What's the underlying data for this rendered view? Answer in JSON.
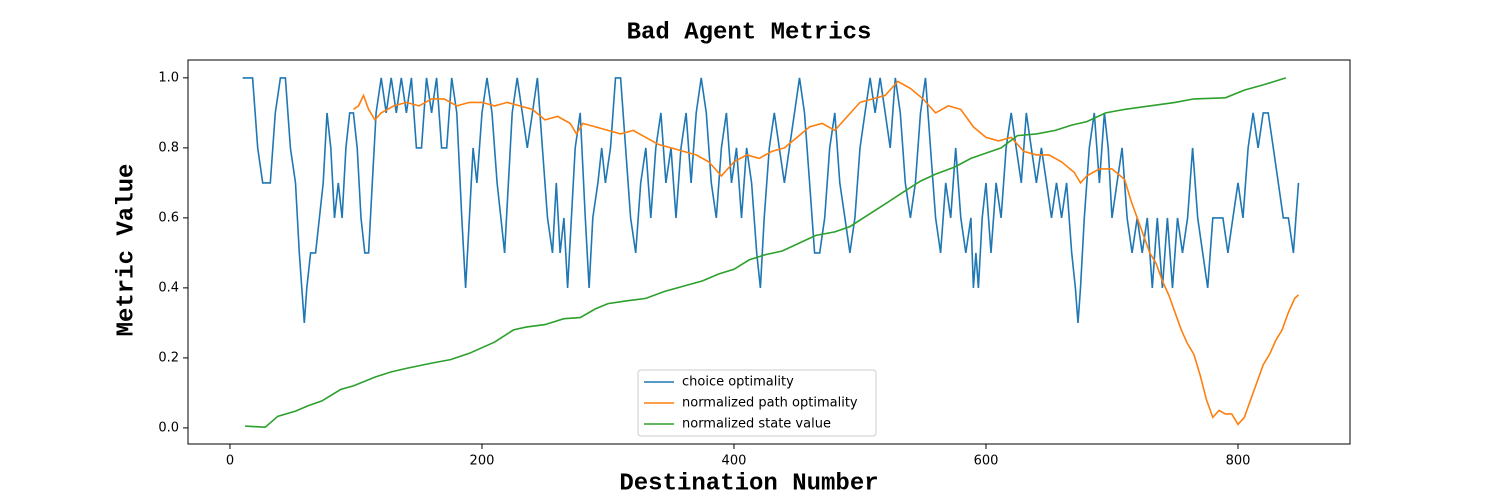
{
  "chart_data": {
    "type": "line",
    "title": "Bad Agent Metrics",
    "x_label": "Destination Number",
    "y_label": "Metric Value",
    "xlim": [
      -33.3,
      888.9
    ],
    "ylim": [
      -0.046,
      1.051
    ],
    "xticks": [
      0,
      200,
      400,
      600,
      800
    ],
    "yticks": [
      {
        "value": 0,
        "label": "0.0"
      },
      {
        "value": 0.2,
        "label": "0.2"
      },
      {
        "value": 0.4,
        "label": "0.4"
      },
      {
        "value": 0.6,
        "label": "0.6"
      },
      {
        "value": 0.8,
        "label": "0.8"
      },
      {
        "value": 1,
        "label": "1.0"
      }
    ],
    "legend": "lower center",
    "series": [
      {
        "name": "choice optimality",
        "color": "#1f77b4",
        "x": [
          10,
          18,
          22,
          26,
          32,
          36,
          40,
          44,
          48,
          52,
          55,
          57,
          59,
          61,
          64,
          68,
          71,
          74,
          77,
          80,
          83,
          86,
          89,
          92,
          95,
          98,
          101,
          104,
          107,
          110,
          113,
          116,
          120,
          124,
          128,
          132,
          136,
          140,
          144,
          148,
          152,
          156,
          160,
          164,
          168,
          172,
          176,
          180,
          184,
          187,
          190,
          193,
          196,
          200,
          204,
          208,
          212,
          215,
          218,
          221,
          224,
          228,
          232,
          236,
          240,
          244,
          248,
          252,
          256,
          259,
          262,
          265,
          268,
          271,
          274,
          278,
          282,
          285,
          288,
          292,
          295,
          298,
          302,
          306,
          310,
          314,
          318,
          322,
          326,
          330,
          334,
          338,
          342,
          346,
          350,
          354,
          358,
          362,
          366,
          370,
          374,
          378,
          382,
          386,
          390,
          394,
          398,
          402,
          406,
          410,
          414,
          418,
          421,
          424,
          428,
          432,
          436,
          440,
          444,
          448,
          452,
          456,
          460,
          464,
          468,
          472,
          476,
          480,
          484,
          488,
          492,
          496,
          500,
          504,
          508,
          512,
          516,
          520,
          524,
          528,
          532,
          536,
          540,
          544,
          548,
          552,
          556,
          560,
          564,
          568,
          572,
          576,
          580,
          584,
          588,
          590,
          592,
          594,
          597,
          600,
          604,
          608,
          612,
          616,
          620,
          624,
          628,
          632,
          636,
          640,
          644,
          648,
          652,
          656,
          660,
          664,
          668,
          671,
          673,
          675,
          678,
          682,
          686,
          690,
          694,
          697,
          700,
          704,
          708,
          712,
          716,
          720,
          724,
          728,
          732,
          736,
          740,
          744,
          748,
          752,
          756,
          760,
          764,
          768,
          772,
          776,
          780,
          784,
          788,
          792,
          796,
          800,
          804,
          808,
          812,
          816,
          820,
          824,
          828,
          832,
          836,
          840,
          844,
          846,
          848
        ],
        "values": [
          1.0,
          1.0,
          0.8,
          0.7,
          0.7,
          0.9,
          1.0,
          1.0,
          0.8,
          0.7,
          0.5,
          0.4,
          0.3,
          0.4,
          0.5,
          0.5,
          0.6,
          0.7,
          0.9,
          0.8,
          0.6,
          0.7,
          0.6,
          0.8,
          0.9,
          0.9,
          0.8,
          0.6,
          0.5,
          0.5,
          0.7,
          0.9,
          1.0,
          0.9,
          1.0,
          0.9,
          1.0,
          0.9,
          1.0,
          0.8,
          0.8,
          1.0,
          0.9,
          1.0,
          0.8,
          0.8,
          1.0,
          0.9,
          0.6,
          0.4,
          0.6,
          0.8,
          0.7,
          0.9,
          1.0,
          0.9,
          0.7,
          0.6,
          0.5,
          0.7,
          0.9,
          1.0,
          0.9,
          0.8,
          0.9,
          1.0,
          0.8,
          0.6,
          0.5,
          0.7,
          0.5,
          0.6,
          0.4,
          0.6,
          0.8,
          0.9,
          0.6,
          0.4,
          0.6,
          0.7,
          0.8,
          0.7,
          0.8,
          1.0,
          1.0,
          0.8,
          0.6,
          0.5,
          0.7,
          0.8,
          0.6,
          0.8,
          0.9,
          0.7,
          0.8,
          0.6,
          0.8,
          0.9,
          0.7,
          0.9,
          1.0,
          0.9,
          0.7,
          0.6,
          0.8,
          0.9,
          0.7,
          0.8,
          0.6,
          0.8,
          0.7,
          0.5,
          0.4,
          0.6,
          0.8,
          0.9,
          0.8,
          0.7,
          0.8,
          0.9,
          1.0,
          0.9,
          0.7,
          0.5,
          0.5,
          0.6,
          0.8,
          0.9,
          0.7,
          0.6,
          0.5,
          0.6,
          0.8,
          0.9,
          1.0,
          0.9,
          1.0,
          0.9,
          0.8,
          1.0,
          0.9,
          0.7,
          0.6,
          0.7,
          0.9,
          1.0,
          0.8,
          0.6,
          0.5,
          0.7,
          0.6,
          0.8,
          0.6,
          0.5,
          0.6,
          0.4,
          0.5,
          0.4,
          0.6,
          0.7,
          0.5,
          0.7,
          0.6,
          0.8,
          0.9,
          0.8,
          0.7,
          0.9,
          0.8,
          0.7,
          0.8,
          0.7,
          0.6,
          0.7,
          0.6,
          0.7,
          0.5,
          0.4,
          0.3,
          0.4,
          0.6,
          0.8,
          0.9,
          0.7,
          0.9,
          0.8,
          0.6,
          0.7,
          0.8,
          0.6,
          0.5,
          0.6,
          0.5,
          0.6,
          0.4,
          0.6,
          0.4,
          0.6,
          0.4,
          0.6,
          0.5,
          0.6,
          0.8,
          0.6,
          0.5,
          0.4,
          0.6,
          0.6,
          0.6,
          0.5,
          0.6,
          0.7,
          0.6,
          0.8,
          0.9,
          0.8,
          0.9,
          0.9,
          0.8,
          0.7,
          0.6,
          0.6,
          0.5,
          0.6,
          0.7
        ]
      },
      {
        "name": "normalized path optimality",
        "color": "#ff7f0e",
        "x": [
          98,
          102,
          106,
          110,
          115,
          120,
          130,
          140,
          150,
          160,
          170,
          180,
          190,
          200,
          210,
          220,
          230,
          240,
          250,
          260,
          270,
          275,
          280,
          290,
          300,
          310,
          320,
          330,
          340,
          350,
          360,
          370,
          380,
          390,
          400,
          410,
          420,
          430,
          440,
          450,
          460,
          470,
          480,
          490,
          500,
          510,
          520,
          530,
          540,
          550,
          560,
          570,
          580,
          590,
          600,
          610,
          620,
          630,
          640,
          650,
          660,
          670,
          675,
          680,
          690,
          700,
          710,
          715,
          720,
          725,
          730,
          735,
          740,
          745,
          750,
          755,
          760,
          765,
          770,
          775,
          780,
          785,
          790,
          795,
          800,
          805,
          810,
          815,
          820,
          825,
          830,
          835,
          840,
          845,
          848
        ],
        "values": [
          0.91,
          0.92,
          0.95,
          0.91,
          0.88,
          0.9,
          0.92,
          0.93,
          0.92,
          0.94,
          0.94,
          0.92,
          0.93,
          0.93,
          0.92,
          0.93,
          0.92,
          0.91,
          0.88,
          0.89,
          0.87,
          0.84,
          0.87,
          0.86,
          0.85,
          0.84,
          0.85,
          0.83,
          0.81,
          0.8,
          0.79,
          0.78,
          0.76,
          0.72,
          0.76,
          0.78,
          0.77,
          0.79,
          0.8,
          0.83,
          0.86,
          0.87,
          0.85,
          0.89,
          0.93,
          0.94,
          0.95,
          0.99,
          0.97,
          0.94,
          0.9,
          0.92,
          0.91,
          0.86,
          0.83,
          0.82,
          0.83,
          0.79,
          0.78,
          0.78,
          0.76,
          0.73,
          0.7,
          0.72,
          0.74,
          0.74,
          0.71,
          0.65,
          0.6,
          0.55,
          0.5,
          0.47,
          0.42,
          0.38,
          0.33,
          0.28,
          0.24,
          0.21,
          0.15,
          0.08,
          0.03,
          0.05,
          0.04,
          0.04,
          0.01,
          0.03,
          0.08,
          0.13,
          0.18,
          0.21,
          0.25,
          0.28,
          0.33,
          0.37,
          0.38
        ]
      },
      {
        "name": "normalized state value",
        "color": "#2ca02c",
        "x": [
          12,
          28,
          38,
          52,
          62,
          73,
          88,
          98,
          115,
          128,
          140,
          160,
          175,
          190,
          210,
          225,
          235,
          250,
          265,
          278,
          290,
          300,
          315,
          330,
          345,
          360,
          375,
          388,
          400,
          412,
          425,
          438,
          450,
          465,
          480,
          492,
          505,
          520,
          535,
          548,
          560,
          575,
          588,
          600,
          612,
          625,
          640,
          655,
          668,
          680,
          695,
          710,
          730,
          750,
          765,
          790,
          805,
          820,
          838
        ],
        "values": [
          0.005,
          0.002,
          0.033,
          0.048,
          0.063,
          0.077,
          0.11,
          0.12,
          0.145,
          0.16,
          0.17,
          0.185,
          0.195,
          0.213,
          0.245,
          0.28,
          0.288,
          0.295,
          0.312,
          0.315,
          0.34,
          0.355,
          0.363,
          0.37,
          0.39,
          0.405,
          0.42,
          0.44,
          0.453,
          0.48,
          0.495,
          0.505,
          0.525,
          0.55,
          0.56,
          0.575,
          0.605,
          0.64,
          0.675,
          0.705,
          0.725,
          0.745,
          0.77,
          0.785,
          0.8,
          0.835,
          0.84,
          0.85,
          0.865,
          0.875,
          0.9,
          0.91,
          0.92,
          0.93,
          0.94,
          0.943,
          0.965,
          0.98,
          1.0
        ]
      }
    ]
  }
}
